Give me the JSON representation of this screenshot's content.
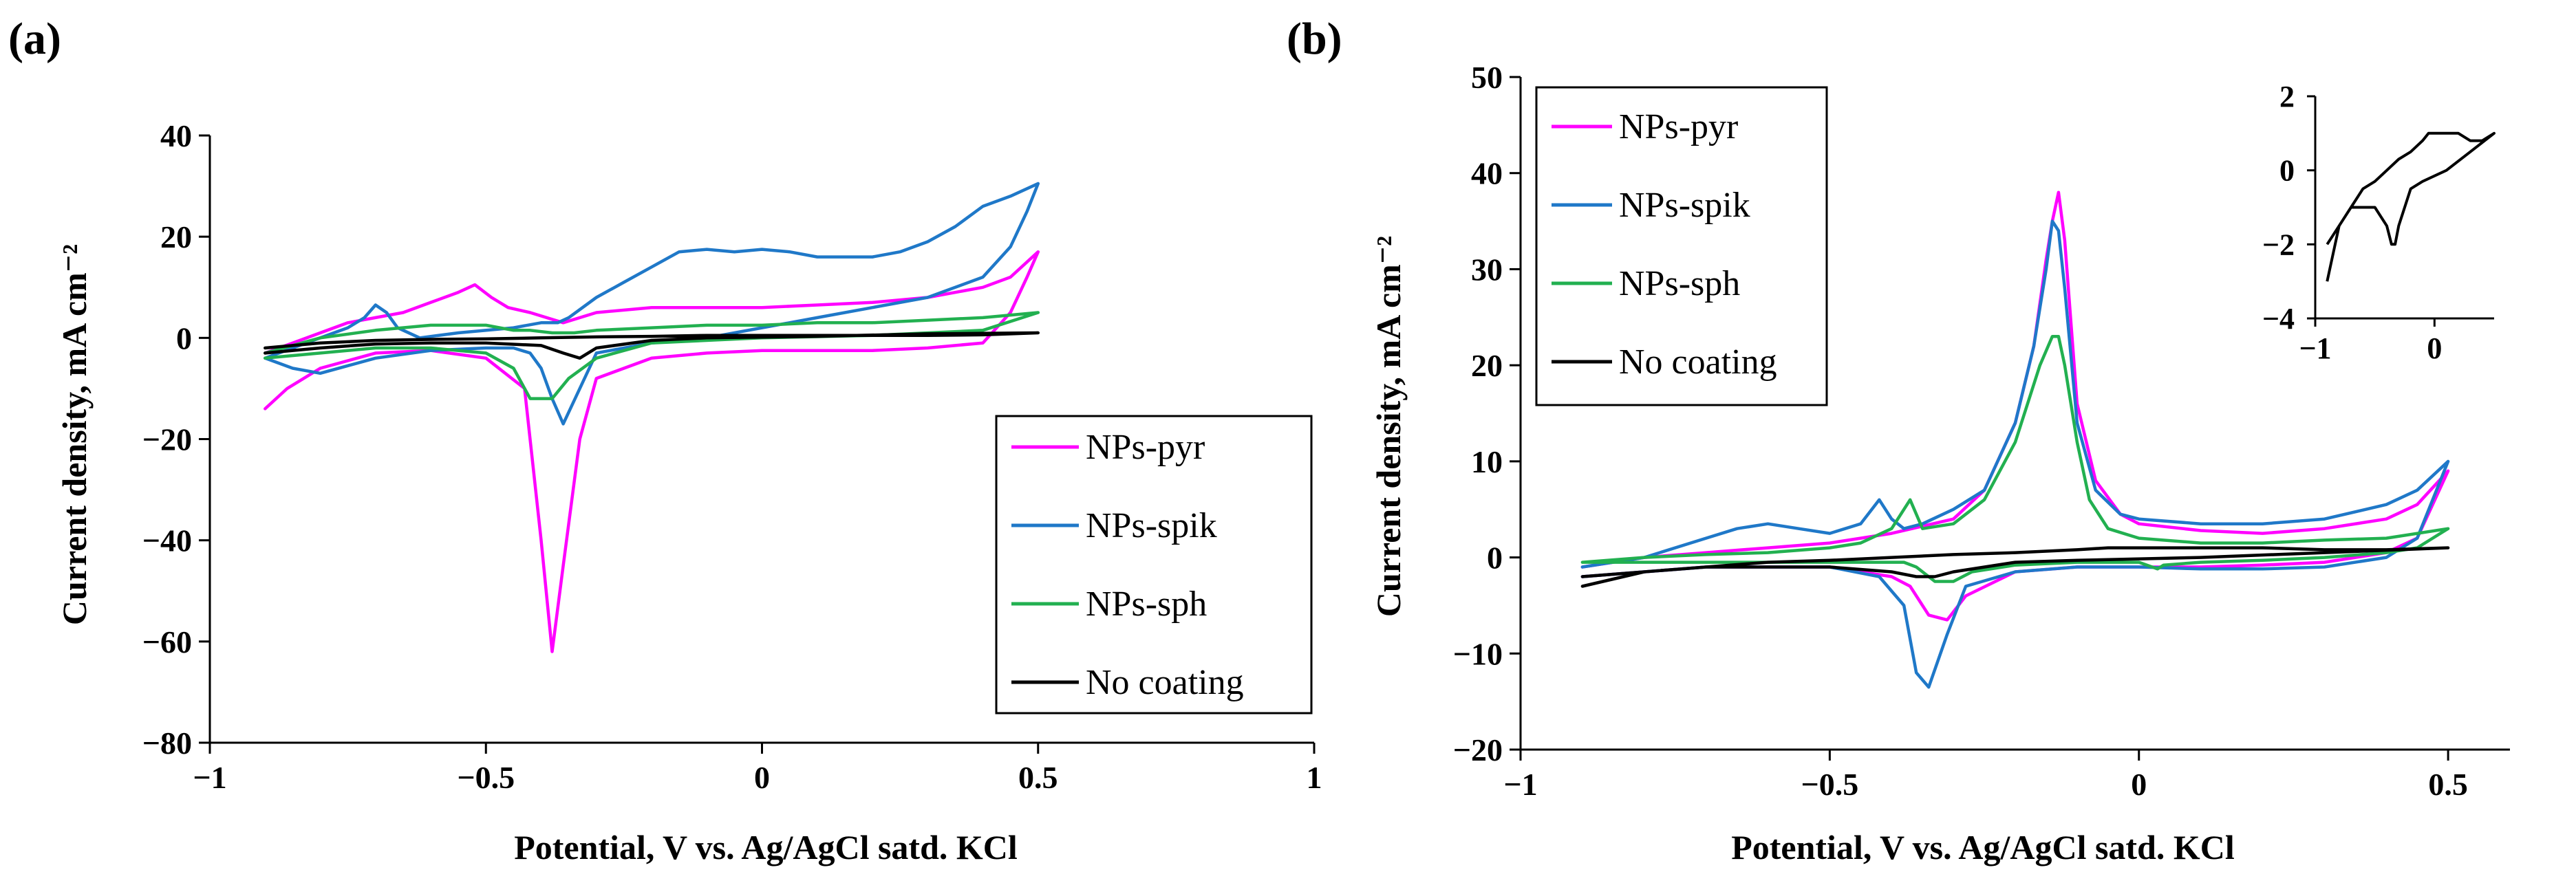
{
  "chart_data": [
    {
      "id": "a",
      "type": "line",
      "panel_label": "(a)",
      "xlabel": "Potential, V vs. Ag/AgCl satd. KCl",
      "ylabel": "Current  density, mA cm⁻²",
      "xlim": [
        -1,
        1
      ],
      "ylim": [
        -80,
        40
      ],
      "xticks": [
        -1,
        -0.5,
        0,
        0.5,
        1
      ],
      "xtick_labels": [
        "−1",
        "−0.5",
        "0",
        "0.5",
        "1"
      ],
      "yticks": [
        -80,
        -60,
        -40,
        -20,
        0,
        20,
        40
      ],
      "ytick_labels": [
        "−80",
        "−60",
        "−40",
        "−20",
        "0",
        "20",
        "40"
      ],
      "grid": false,
      "legend_position": "bottom-right",
      "series": [
        {
          "name": "NPs-pyr",
          "color": "#ff00ff",
          "x": [
            -0.9,
            -0.85,
            -0.8,
            -0.75,
            -0.7,
            -0.65,
            -0.6,
            -0.55,
            -0.52,
            -0.49,
            -0.46,
            -0.42,
            -0.39,
            -0.36,
            -0.3,
            -0.2,
            -0.1,
            0,
            0.1,
            0.2,
            0.3,
            0.4,
            0.45,
            0.5,
            0.5,
            0.48,
            0.45,
            0.4,
            0.3,
            0.2,
            0.1,
            0,
            -0.1,
            -0.2,
            -0.3,
            -0.33,
            -0.36,
            -0.38,
            -0.4,
            -0.43,
            -0.5,
            -0.6,
            -0.7,
            -0.8,
            -0.86,
            -0.9
          ],
          "y": [
            -3,
            -1,
            1,
            3,
            4,
            5,
            7,
            9,
            10.5,
            8,
            6,
            5,
            4,
            3,
            5,
            6,
            6,
            6,
            6.5,
            7,
            8,
            10,
            12,
            17,
            17,
            12,
            5,
            -1,
            -2,
            -2.5,
            -2.5,
            -2.5,
            -3,
            -4,
            -8,
            -20,
            -45,
            -62,
            -40,
            -10,
            -4,
            -2.5,
            -3,
            -6,
            -10,
            -14
          ]
        },
        {
          "name": "NPs-spik",
          "color": "#1f78c8",
          "x": [
            -0.9,
            -0.85,
            -0.8,
            -0.75,
            -0.72,
            -0.7,
            -0.68,
            -0.66,
            -0.62,
            -0.55,
            -0.45,
            -0.4,
            -0.37,
            -0.35,
            -0.3,
            -0.25,
            -0.2,
            -0.15,
            -0.1,
            -0.05,
            0,
            0.05,
            0.1,
            0.15,
            0.2,
            0.25,
            0.3,
            0.35,
            0.4,
            0.45,
            0.5,
            0.5,
            0.48,
            0.45,
            0.4,
            0.3,
            0.2,
            0.1,
            0,
            -0.1,
            -0.2,
            -0.3,
            -0.33,
            -0.36,
            -0.38,
            -0.4,
            -0.42,
            -0.45,
            -0.5,
            -0.6,
            -0.7,
            -0.8,
            -0.85,
            -0.9
          ],
          "y": [
            -4,
            -2,
            0,
            2,
            4,
            6.5,
            5,
            2,
            0,
            1,
            2,
            3,
            3,
            4,
            8,
            11,
            14,
            17,
            17.5,
            17,
            17.5,
            17,
            16,
            16,
            16,
            17,
            19,
            22,
            26,
            28,
            30.5,
            30.5,
            25,
            18,
            12,
            8,
            6,
            4,
            2,
            0,
            -1,
            -3,
            -10,
            -17,
            -12,
            -6,
            -3,
            -2,
            -2,
            -2.5,
            -4,
            -7,
            -6,
            -4
          ]
        },
        {
          "name": "NPs-sph",
          "color": "#22b050",
          "x": [
            -0.9,
            -0.8,
            -0.7,
            -0.6,
            -0.55,
            -0.5,
            -0.45,
            -0.42,
            -0.38,
            -0.34,
            -0.3,
            -0.2,
            -0.1,
            0,
            0.1,
            0.2,
            0.3,
            0.4,
            0.5,
            0.5,
            0.4,
            0.2,
            0,
            -0.2,
            -0.3,
            -0.35,
            -0.38,
            -0.42,
            -0.45,
            -0.5,
            -0.6,
            -0.7,
            -0.8,
            -0.9
          ],
          "y": [
            -3,
            0,
            1.5,
            2.5,
            2.5,
            2.5,
            1.5,
            1.5,
            1,
            1,
            1.5,
            2,
            2.5,
            2.5,
            3,
            3,
            3.5,
            4,
            5,
            5,
            1.5,
            0.5,
            0,
            -1,
            -4,
            -8,
            -12,
            -12,
            -6,
            -3,
            -2,
            -2,
            -3,
            -4
          ]
        },
        {
          "name": "No coating",
          "color": "#000000",
          "x": [
            -0.9,
            -0.8,
            -0.7,
            -0.6,
            -0.5,
            -0.4,
            -0.3,
            -0.2,
            -0.1,
            0,
            0.1,
            0.2,
            0.3,
            0.4,
            0.5,
            0.5,
            0.3,
            0.1,
            -0.1,
            -0.2,
            -0.3,
            -0.33,
            -0.36,
            -0.4,
            -0.5,
            -0.6,
            -0.7,
            -0.8,
            -0.9
          ],
          "y": [
            -2,
            -1,
            -0.5,
            -0.3,
            -0.2,
            0,
            0.2,
            0.3,
            0.5,
            0.5,
            0.5,
            0.5,
            0.5,
            0.6,
            1,
            1,
            0.8,
            0.3,
            0,
            -0.5,
            -2,
            -4,
            -3,
            -1.5,
            -1,
            -1,
            -1.2,
            -2,
            -3
          ]
        }
      ]
    },
    {
      "id": "b",
      "type": "line",
      "panel_label": "(b)",
      "xlabel": "Potential, V vs. Ag/AgCl satd. KCl",
      "ylabel": "Current  density, mA cm⁻²",
      "xlim": [
        -1,
        0.6
      ],
      "ylim": [
        -20,
        50
      ],
      "xticks": [
        -1,
        -0.5,
        0,
        0.5
      ],
      "xtick_labels": [
        "−1",
        "−0.5",
        "0",
        "0.5"
      ],
      "yticks": [
        -20,
        -10,
        0,
        10,
        20,
        30,
        40,
        50
      ],
      "ytick_labels": [
        "−20",
        "−10",
        "0",
        "10",
        "20",
        "30",
        "40",
        "50"
      ],
      "grid": false,
      "legend_position": "top-left",
      "series": [
        {
          "name": "NPs-pyr",
          "color": "#ff00ff",
          "x": [
            -0.9,
            -0.8,
            -0.7,
            -0.6,
            -0.5,
            -0.4,
            -0.3,
            -0.25,
            -0.2,
            -0.17,
            -0.15,
            -0.14,
            -0.13,
            -0.12,
            -0.1,
            -0.07,
            -0.03,
            0,
            0.1,
            0.2,
            0.3,
            0.4,
            0.45,
            0.5,
            0.5,
            0.45,
            0.4,
            0.3,
            0.2,
            0.1,
            0,
            -0.1,
            -0.2,
            -0.28,
            -0.31,
            -0.34,
            -0.37,
            -0.4,
            -0.5,
            -0.6,
            -0.7,
            -0.8,
            -0.9
          ],
          "y": [
            -1,
            0,
            0.5,
            1,
            1.5,
            2.5,
            4,
            7,
            14,
            22,
            31,
            35,
            38,
            33,
            16,
            8,
            4.5,
            3.5,
            2.8,
            2.5,
            3,
            4,
            5.5,
            9,
            9,
            2,
            0.5,
            -0.5,
            -0.8,
            -1,
            -1,
            -1,
            -1.5,
            -4,
            -6.5,
            -6,
            -3,
            -2,
            -1,
            -1,
            -1,
            -1.5,
            -2
          ]
        },
        {
          "name": "NPs-spik",
          "color": "#1f78c8",
          "x": [
            -0.9,
            -0.8,
            -0.7,
            -0.65,
            -0.6,
            -0.55,
            -0.5,
            -0.45,
            -0.42,
            -0.4,
            -0.38,
            -0.35,
            -0.3,
            -0.25,
            -0.2,
            -0.17,
            -0.15,
            -0.14,
            -0.13,
            -0.12,
            -0.1,
            -0.07,
            -0.03,
            0,
            0.1,
            0.2,
            0.3,
            0.4,
            0.45,
            0.5,
            0.5,
            0.45,
            0.4,
            0.3,
            0.2,
            0.1,
            0,
            -0.1,
            -0.2,
            -0.28,
            -0.31,
            -0.34,
            -0.36,
            -0.38,
            -0.42,
            -0.5,
            -0.6,
            -0.7,
            -0.8,
            -0.9
          ],
          "y": [
            -1,
            0,
            2,
            3,
            3.5,
            3,
            2.5,
            3.5,
            6,
            4,
            3,
            3.5,
            5,
            7,
            14,
            22,
            30,
            35,
            34,
            28,
            14,
            7,
            4.5,
            4,
            3.5,
            3.5,
            4,
            5.5,
            7,
            10,
            10,
            2,
            0,
            -1,
            -1.2,
            -1.2,
            -1,
            -1,
            -1.5,
            -3,
            -8,
            -13.5,
            -12,
            -5,
            -2,
            -1,
            -1,
            -1,
            -1.5,
            -2
          ]
        },
        {
          "name": "NPs-sph",
          "color": "#22b050",
          "x": [
            -0.9,
            -0.8,
            -0.7,
            -0.6,
            -0.5,
            -0.45,
            -0.4,
            -0.37,
            -0.35,
            -0.3,
            -0.25,
            -0.2,
            -0.16,
            -0.14,
            -0.13,
            -0.12,
            -0.1,
            -0.08,
            -0.05,
            0,
            0.1,
            0.2,
            0.3,
            0.4,
            0.5,
            0.5,
            0.45,
            0.4,
            0.3,
            0.2,
            0.1,
            0.04,
            0.03,
            0,
            -0.1,
            -0.2,
            -0.27,
            -0.3,
            -0.33,
            -0.36,
            -0.38,
            -0.4,
            -0.5,
            -0.6,
            -0.7,
            -0.8,
            -0.9
          ],
          "y": [
            -0.5,
            0,
            0.3,
            0.5,
            1,
            1.5,
            3,
            6,
            3,
            3.5,
            6,
            12,
            20,
            23,
            23,
            20,
            12,
            6,
            3,
            2,
            1.5,
            1.5,
            1.8,
            2,
            3,
            3,
            1,
            0.5,
            0,
            -0.3,
            -0.5,
            -0.8,
            -1.2,
            -0.5,
            -0.5,
            -0.8,
            -1.5,
            -2.5,
            -2.5,
            -1,
            -0.5,
            -0.5,
            -0.5,
            -0.5,
            -0.5,
            -0.5,
            -0.5
          ]
        },
        {
          "name": "No coating",
          "color": "#000000",
          "x": [
            -0.9,
            -0.8,
            -0.7,
            -0.6,
            -0.5,
            -0.4,
            -0.3,
            -0.2,
            -0.1,
            -0.05,
            0,
            0.1,
            0.2,
            0.3,
            0.4,
            0.5,
            0.5,
            0.3,
            0.1,
            -0.1,
            -0.2,
            -0.3,
            -0.33,
            -0.36,
            -0.4,
            -0.5,
            -0.6,
            -0.7,
            -0.8,
            -0.9
          ],
          "y": [
            -3,
            -1.5,
            -1,
            -0.5,
            -0.3,
            0,
            0.3,
            0.5,
            0.8,
            1,
            1,
            1,
            1,
            0.8,
            0.8,
            1,
            1,
            0.5,
            0,
            -0.3,
            -0.5,
            -1.5,
            -2,
            -2,
            -1.5,
            -1,
            -1,
            -1,
            -1.5,
            -2
          ]
        }
      ],
      "inset": {
        "series_name": "No coating",
        "xlim": [
          -1,
          0.5
        ],
        "ylim": [
          -4,
          2
        ],
        "xticks": [
          -1,
          0
        ],
        "xtick_labels": [
          "−1",
          "0"
        ],
        "yticks": [
          -4,
          -2,
          0,
          2
        ],
        "ytick_labels": [
          "−4",
          "−2",
          "0",
          "2"
        ]
      }
    }
  ]
}
